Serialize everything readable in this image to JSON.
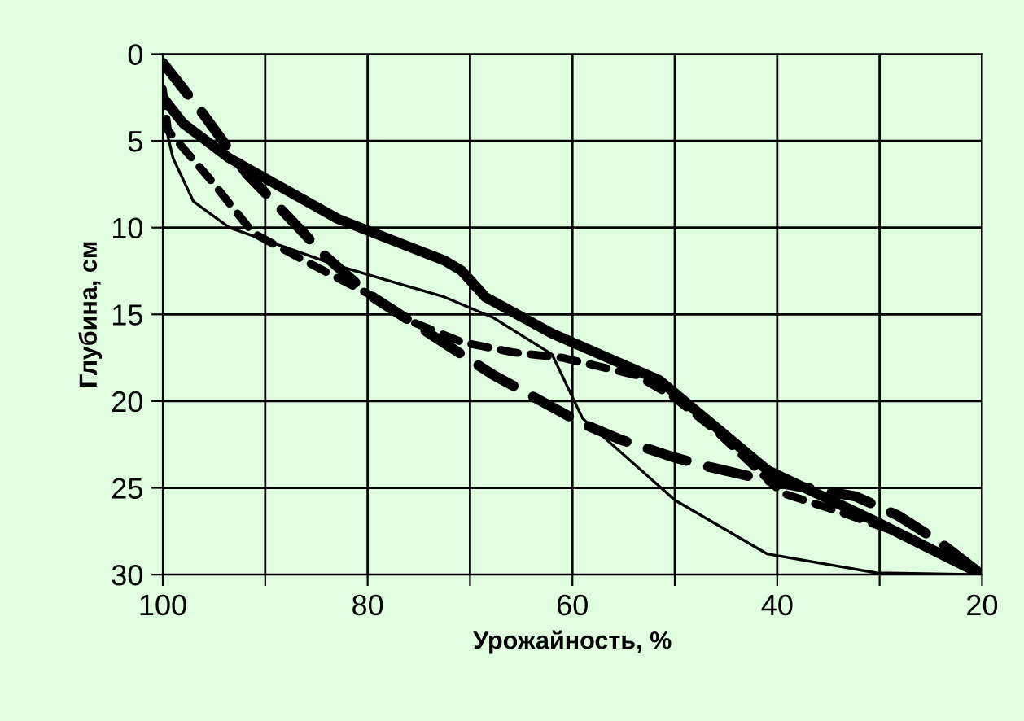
{
  "chart_data": {
    "type": "line",
    "xlabel": "Урожайность, %",
    "ylabel": "Глубина, см",
    "xlim": [
      100,
      20
    ],
    "ylim": [
      30,
      0
    ],
    "xticks": [
      100,
      {
        "value": 90,
        "label": null
      },
      80,
      {
        "value": 70,
        "label": null
      },
      60,
      {
        "value": 50,
        "label": null
      },
      40,
      {
        "value": 30,
        "label": null
      },
      20
    ],
    "yticks": [
      0,
      5,
      10,
      15,
      20,
      25,
      30
    ],
    "grid": true,
    "marker": "none",
    "series": [
      {
        "color": "#000000",
        "line_style": "solid",
        "x": [
          100,
          98,
          93.5,
          82.9,
          72.5,
          70.8,
          68.5,
          62,
          51.5,
          40.9,
          30.5,
          20
        ],
        "values": [
          2.5,
          4,
          6,
          9.5,
          11.9,
          12.5,
          14,
          16.1,
          18.8,
          24,
          26.9,
          30
        ]
      },
      {
        "color": "#000000",
        "line_style": "solid",
        "x": [
          100,
          99,
          97,
          93.5,
          82.9,
          72.5,
          67.7,
          62,
          59,
          50,
          41,
          30.3,
          20
        ],
        "values": [
          3.5,
          6,
          8.5,
          10,
          12.2,
          14,
          15.2,
          17.3,
          21,
          25.7,
          28.8,
          29.9,
          30
        ]
      },
      {
        "color": "#000000",
        "line_style": "dashed",
        "x": [
          100,
          96,
          91.8,
          88.2,
          84.2,
          80,
          67.7,
          59,
          55.4,
          50.3,
          46.6,
          40,
          32.3,
          28.2,
          24.2,
          20
        ],
        "values": [
          0.5,
          3.5,
          6.9,
          9.1,
          11.6,
          13.8,
          18.5,
          21.3,
          22.2,
          23.2,
          23.8,
          24.7,
          25.5,
          26.6,
          28.1,
          30
        ]
      },
      {
        "color": "#000000",
        "line_style": "dashed",
        "x": [
          100,
          99.5,
          95.4,
          91.2,
          86.2,
          80,
          75.8,
          70.8,
          65.7,
          61,
          53.8,
          50.3,
          46.2,
          39.5,
          34.3,
          27.2,
          20
        ],
        "values": [
          2,
          4.4,
          7.2,
          10.3,
          11.9,
          13.8,
          15.4,
          16.6,
          17.2,
          17.5,
          18.5,
          19.7,
          21.6,
          25.3,
          26.3,
          27.8,
          30
        ]
      }
    ]
  }
}
